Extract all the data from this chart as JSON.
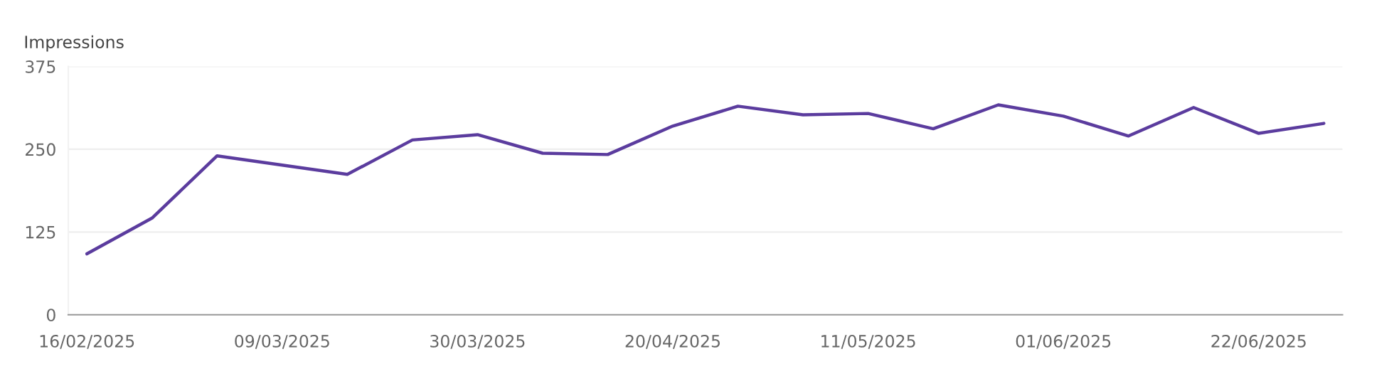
{
  "chart_data": {
    "type": "line",
    "ylabel": "Impressions",
    "x": [
      "2025-02-16",
      "2025-02-23",
      "2025-03-02",
      "2025-03-09",
      "2025-03-16",
      "2025-03-23",
      "2025-03-30",
      "2025-04-06",
      "2025-04-13",
      "2025-04-20",
      "2025-04-27",
      "2025-05-04",
      "2025-05-11",
      "2025-05-18",
      "2025-05-25",
      "2025-06-01",
      "2025-06-08",
      "2025-06-15",
      "2025-06-22",
      "2025-06-29"
    ],
    "series": [
      {
        "color": "#5b3c9e",
        "values": [
          92,
          146,
          240,
          226,
          212,
          264,
          272,
          244,
          242,
          285,
          315,
          302,
          304,
          281,
          317,
          300,
          270,
          313,
          274,
          289
        ]
      }
    ],
    "xlim": [
      "2025-02-14",
      "2025-07-01"
    ],
    "xticks": [
      {
        "value": "2025-02-16",
        "label": "16/02/2025"
      },
      {
        "value": "2025-03-09",
        "label": "09/03/2025"
      },
      {
        "value": "2025-03-30",
        "label": "30/03/2025"
      },
      {
        "value": "2025-04-20",
        "label": "20/04/2025"
      },
      {
        "value": "2025-05-11",
        "label": "11/05/2025"
      },
      {
        "value": "2025-06-01",
        "label": "01/06/2025"
      },
      {
        "value": "2025-06-22",
        "label": "22/06/2025"
      }
    ],
    "ylim": [
      0,
      375
    ],
    "yticks": [
      0,
      125,
      250,
      375
    ],
    "grid": "y",
    "marker": "none",
    "line_style": "solid",
    "legend": false
  }
}
